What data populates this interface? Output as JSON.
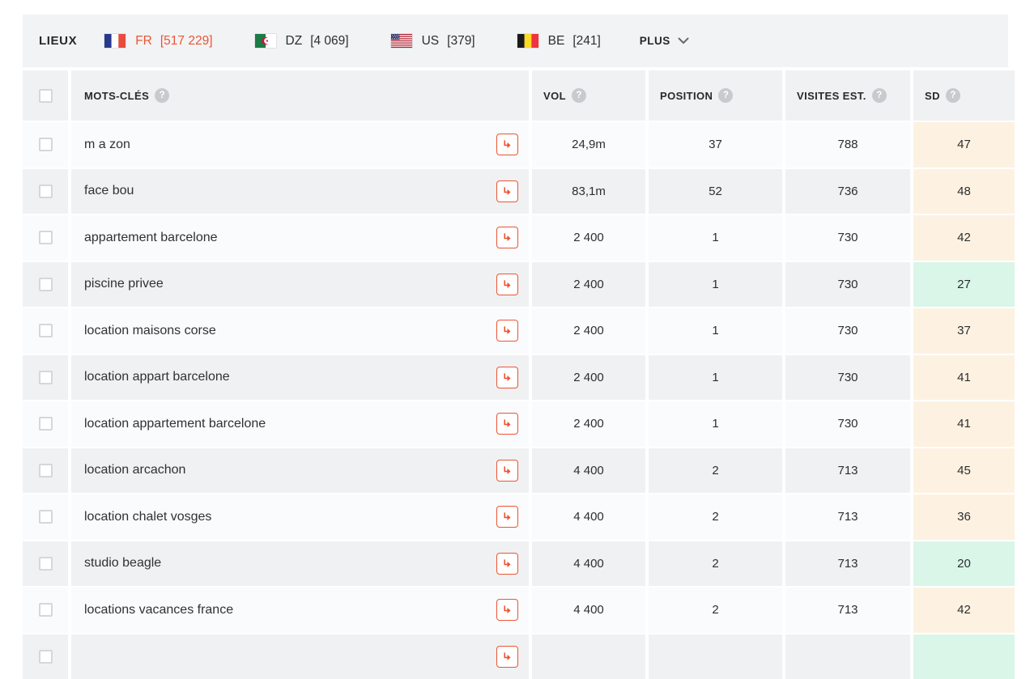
{
  "accent_color": "#ed5434",
  "sd_colors": {
    "low": "#d9f6e9",
    "high": "#fdf2e2"
  },
  "locations_bar": {
    "label": "LIEUX",
    "items": [
      {
        "code": "FR",
        "count": "[517 229]",
        "flag": "fr",
        "active": true
      },
      {
        "code": "DZ",
        "count": "[4 069]",
        "flag": "dz",
        "active": false
      },
      {
        "code": "US",
        "count": "[379]",
        "flag": "us",
        "active": false
      },
      {
        "code": "BE",
        "count": "[241]",
        "flag": "be",
        "active": false
      }
    ],
    "more_label": "PLUS",
    "more_icon": "chevron-down-icon"
  },
  "table": {
    "columns": [
      {
        "key": "keyword",
        "label": "MOTS-CLÉS",
        "has_help": true
      },
      {
        "key": "vol",
        "label": "VOL",
        "has_help": true
      },
      {
        "key": "position",
        "label": "POSITION",
        "has_help": true
      },
      {
        "key": "visits",
        "label": "VISITES EST.",
        "has_help": true
      },
      {
        "key": "sd",
        "label": "SD",
        "has_help": true
      }
    ],
    "help_glyph": "?",
    "rows": [
      {
        "keyword": "m a zon",
        "vol": "24,9m",
        "position": "37",
        "visits": "788",
        "sd": "47",
        "sd_level": "high"
      },
      {
        "keyword": "face bou",
        "vol": "83,1m",
        "position": "52",
        "visits": "736",
        "sd": "48",
        "sd_level": "high"
      },
      {
        "keyword": "appartement barcelone",
        "vol": "2 400",
        "position": "1",
        "visits": "730",
        "sd": "42",
        "sd_level": "high"
      },
      {
        "keyword": "piscine privee",
        "vol": "2 400",
        "position": "1",
        "visits": "730",
        "sd": "27",
        "sd_level": "low"
      },
      {
        "keyword": "location maisons corse",
        "vol": "2 400",
        "position": "1",
        "visits": "730",
        "sd": "37",
        "sd_level": "high"
      },
      {
        "keyword": "location appart barcelone",
        "vol": "2 400",
        "position": "1",
        "visits": "730",
        "sd": "41",
        "sd_level": "high"
      },
      {
        "keyword": "location appartement barcelone",
        "vol": "2 400",
        "position": "1",
        "visits": "730",
        "sd": "41",
        "sd_level": "high"
      },
      {
        "keyword": "location arcachon",
        "vol": "4 400",
        "position": "2",
        "visits": "713",
        "sd": "45",
        "sd_level": "high"
      },
      {
        "keyword": "location chalet vosges",
        "vol": "4 400",
        "position": "2",
        "visits": "713",
        "sd": "36",
        "sd_level": "high"
      },
      {
        "keyword": "studio beagle",
        "vol": "4 400",
        "position": "2",
        "visits": "713",
        "sd": "20",
        "sd_level": "low"
      },
      {
        "keyword": "locations vacances france",
        "vol": "4 400",
        "position": "2",
        "visits": "713",
        "sd": "42",
        "sd_level": "high"
      }
    ],
    "partial_row": {
      "visible": true,
      "sd_level": "low"
    }
  }
}
